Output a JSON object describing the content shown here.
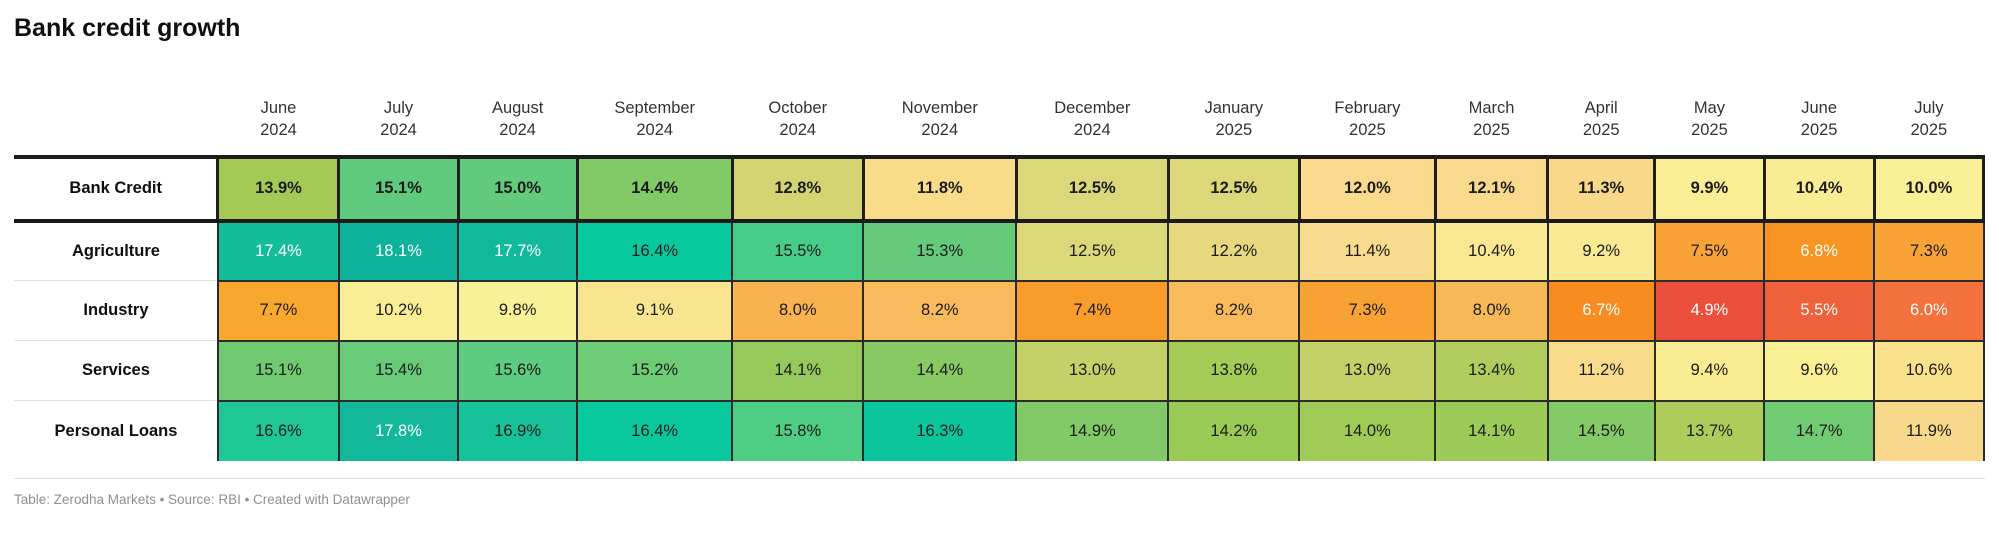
{
  "title": "Bank credit growth",
  "footer": "Table: Zerodha Markets • Source: RBI • Created with Datawrapper",
  "columns": [
    {
      "month": "June",
      "year": "2024"
    },
    {
      "month": "July",
      "year": "2024"
    },
    {
      "month": "August",
      "year": "2024"
    },
    {
      "month": "September",
      "year": "2024"
    },
    {
      "month": "October",
      "year": "2024"
    },
    {
      "month": "November",
      "year": "2024"
    },
    {
      "month": "December",
      "year": "2024"
    },
    {
      "month": "January",
      "year": "2025"
    },
    {
      "month": "February",
      "year": "2025"
    },
    {
      "month": "March",
      "year": "2025"
    },
    {
      "month": "April",
      "year": "2025"
    },
    {
      "month": "May",
      "year": "2025"
    },
    {
      "month": "June",
      "year": "2025"
    },
    {
      "month": "July",
      "year": "2025"
    }
  ],
  "rows": [
    {
      "label": "Bank Credit",
      "emphasis": true,
      "cells": [
        {
          "v": "13.9%",
          "bg": "#a4ca56",
          "white": false
        },
        {
          "v": "15.1%",
          "bg": "#5fca7e",
          "white": false
        },
        {
          "v": "15.0%",
          "bg": "#62ca7c",
          "white": false
        },
        {
          "v": "14.4%",
          "bg": "#82c968",
          "white": false
        },
        {
          "v": "12.8%",
          "bg": "#d5d472",
          "white": false
        },
        {
          "v": "11.8%",
          "bg": "#f8dc8a",
          "white": false
        },
        {
          "v": "12.5%",
          "bg": "#dcd779",
          "white": false
        },
        {
          "v": "12.5%",
          "bg": "#dcd779",
          "white": false
        },
        {
          "v": "12.0%",
          "bg": "#f9d98c",
          "white": false
        },
        {
          "v": "12.1%",
          "bg": "#f9d98c",
          "white": false
        },
        {
          "v": "11.3%",
          "bg": "#f8d989",
          "white": false
        },
        {
          "v": "9.9%",
          "bg": "#f9ee95",
          "white": false
        },
        {
          "v": "10.4%",
          "bg": "#f9ed94",
          "white": false
        },
        {
          "v": "10.0%",
          "bg": "#f9ef97",
          "white": false
        }
      ]
    },
    {
      "label": "Agriculture",
      "emphasis": false,
      "cells": [
        {
          "v": "17.4%",
          "bg": "#13bd9c",
          "white": true
        },
        {
          "v": "18.1%",
          "bg": "#0eb29b",
          "white": true
        },
        {
          "v": "17.7%",
          "bg": "#11b99c",
          "white": true
        },
        {
          "v": "16.4%",
          "bg": "#08c89d",
          "white": false
        },
        {
          "v": "15.5%",
          "bg": "#48cd88",
          "white": false
        },
        {
          "v": "15.3%",
          "bg": "#65cb7b",
          "white": false
        },
        {
          "v": "12.5%",
          "bg": "#dcd779",
          "white": false
        },
        {
          "v": "12.2%",
          "bg": "#e7d77e",
          "white": false
        },
        {
          "v": "11.4%",
          "bg": "#f8db8d",
          "white": false
        },
        {
          "v": "10.4%",
          "bg": "#f9e791",
          "white": false
        },
        {
          "v": "9.2%",
          "bg": "#f9e992",
          "white": false
        },
        {
          "v": "7.5%",
          "bg": "#f9a238",
          "white": false
        },
        {
          "v": "6.8%",
          "bg": "#f79422",
          "white": true
        },
        {
          "v": "7.3%",
          "bg": "#f9a336",
          "white": false
        }
      ]
    },
    {
      "label": "Industry",
      "emphasis": false,
      "cells": [
        {
          "v": "7.7%",
          "bg": "#f8a72f",
          "white": false
        },
        {
          "v": "10.2%",
          "bg": "#f9ee95",
          "white": false
        },
        {
          "v": "9.8%",
          "bg": "#f9f198",
          "white": false
        },
        {
          "v": "9.1%",
          "bg": "#f9e58f",
          "white": false
        },
        {
          "v": "8.0%",
          "bg": "#f9b250",
          "white": false
        },
        {
          "v": "8.2%",
          "bg": "#f9ba5d",
          "white": false
        },
        {
          "v": "7.4%",
          "bg": "#f89d2b",
          "white": false
        },
        {
          "v": "8.2%",
          "bg": "#f9ba5b",
          "white": false
        },
        {
          "v": "7.3%",
          "bg": "#f8a233",
          "white": false
        },
        {
          "v": "8.0%",
          "bg": "#f9b857",
          "white": false
        },
        {
          "v": "6.7%",
          "bg": "#f78d20",
          "white": true
        },
        {
          "v": "4.9%",
          "bg": "#e94f3c",
          "white": true
        },
        {
          "v": "5.5%",
          "bg": "#ef613a",
          "white": true
        },
        {
          "v": "6.0%",
          "bg": "#f2713c",
          "white": true
        }
      ]
    },
    {
      "label": "Services",
      "emphasis": false,
      "cells": [
        {
          "v": "15.1%",
          "bg": "#71ca72",
          "white": false
        },
        {
          "v": "15.4%",
          "bg": "#67cb79",
          "white": false
        },
        {
          "v": "15.6%",
          "bg": "#5dcb80",
          "white": false
        },
        {
          "v": "15.2%",
          "bg": "#6ecb76",
          "white": false
        },
        {
          "v": "14.1%",
          "bg": "#95c95c",
          "white": false
        },
        {
          "v": "14.4%",
          "bg": "#89c963",
          "white": false
        },
        {
          "v": "13.0%",
          "bg": "#c4d168",
          "white": false
        },
        {
          "v": "13.8%",
          "bg": "#a4cb55",
          "white": false
        },
        {
          "v": "13.0%",
          "bg": "#c4d168",
          "white": false
        },
        {
          "v": "13.4%",
          "bg": "#b1cd5e",
          "white": false
        },
        {
          "v": "11.2%",
          "bg": "#f8dc8c",
          "white": false
        },
        {
          "v": "9.4%",
          "bg": "#f9eb92",
          "white": false
        },
        {
          "v": "9.6%",
          "bg": "#f9f096",
          "white": false
        },
        {
          "v": "10.6%",
          "bg": "#f9e18c",
          "white": false
        }
      ]
    },
    {
      "label": "Personal Loans",
      "emphasis": false,
      "cells": [
        {
          "v": "16.6%",
          "bg": "#1ec795",
          "white": false
        },
        {
          "v": "17.8%",
          "bg": "#13b89b",
          "white": true
        },
        {
          "v": "16.9%",
          "bg": "#15c29a",
          "white": false
        },
        {
          "v": "16.4%",
          "bg": "#09c89d",
          "white": false
        },
        {
          "v": "15.8%",
          "bg": "#4ecd85",
          "white": false
        },
        {
          "v": "16.3%",
          "bg": "#0bc69d",
          "white": false
        },
        {
          "v": "14.9%",
          "bg": "#82ca67",
          "white": false
        },
        {
          "v": "14.2%",
          "bg": "#9aca56",
          "white": false
        },
        {
          "v": "14.0%",
          "bg": "#9fcb56",
          "white": false
        },
        {
          "v": "14.1%",
          "bg": "#9ccb59",
          "white": false
        },
        {
          "v": "14.5%",
          "bg": "#84ca66",
          "white": false
        },
        {
          "v": "13.7%",
          "bg": "#adcd5a",
          "white": false
        },
        {
          "v": "14.7%",
          "bg": "#70cb73",
          "white": false
        },
        {
          "v": "11.9%",
          "bg": "#f8d88a",
          "white": false
        }
      ]
    }
  ],
  "text_colors": {
    "dark": "#1b1b1b",
    "white": "#ffffff"
  },
  "chart_data": {
    "type": "heatmap",
    "title": "Bank credit growth",
    "unit": "%",
    "categories": [
      "June 2024",
      "July 2024",
      "August 2024",
      "September 2024",
      "October 2024",
      "November 2024",
      "December 2024",
      "January 2025",
      "February 2025",
      "March 2025",
      "April 2025",
      "May 2025",
      "June 2025",
      "July 2025"
    ],
    "series": [
      {
        "name": "Bank Credit",
        "values": [
          13.9,
          15.1,
          15.0,
          14.4,
          12.8,
          11.8,
          12.5,
          12.5,
          12.0,
          12.1,
          11.3,
          9.9,
          10.4,
          10.0
        ]
      },
      {
        "name": "Agriculture",
        "values": [
          17.4,
          18.1,
          17.7,
          16.4,
          15.5,
          15.3,
          12.5,
          12.2,
          11.4,
          10.4,
          9.2,
          7.5,
          6.8,
          7.3
        ]
      },
      {
        "name": "Industry",
        "values": [
          7.7,
          10.2,
          9.8,
          9.1,
          8.0,
          8.2,
          7.4,
          8.2,
          7.3,
          8.0,
          6.7,
          4.9,
          5.5,
          6.0
        ]
      },
      {
        "name": "Services",
        "values": [
          15.1,
          15.4,
          15.6,
          15.2,
          14.1,
          14.4,
          13.0,
          13.8,
          13.0,
          13.4,
          11.2,
          9.4,
          9.6,
          10.6
        ]
      },
      {
        "name": "Personal Loans",
        "values": [
          16.6,
          17.8,
          16.9,
          16.4,
          15.8,
          16.3,
          14.9,
          14.2,
          14.0,
          14.1,
          14.5,
          13.7,
          14.7,
          11.9
        ]
      }
    ],
    "color_scale": "diverging red-orange-yellow-green-teal, low values red/orange, high values teal/green",
    "legend": "none",
    "source_note": "Table: Zerodha Markets • Source: RBI • Created with Datawrapper"
  }
}
